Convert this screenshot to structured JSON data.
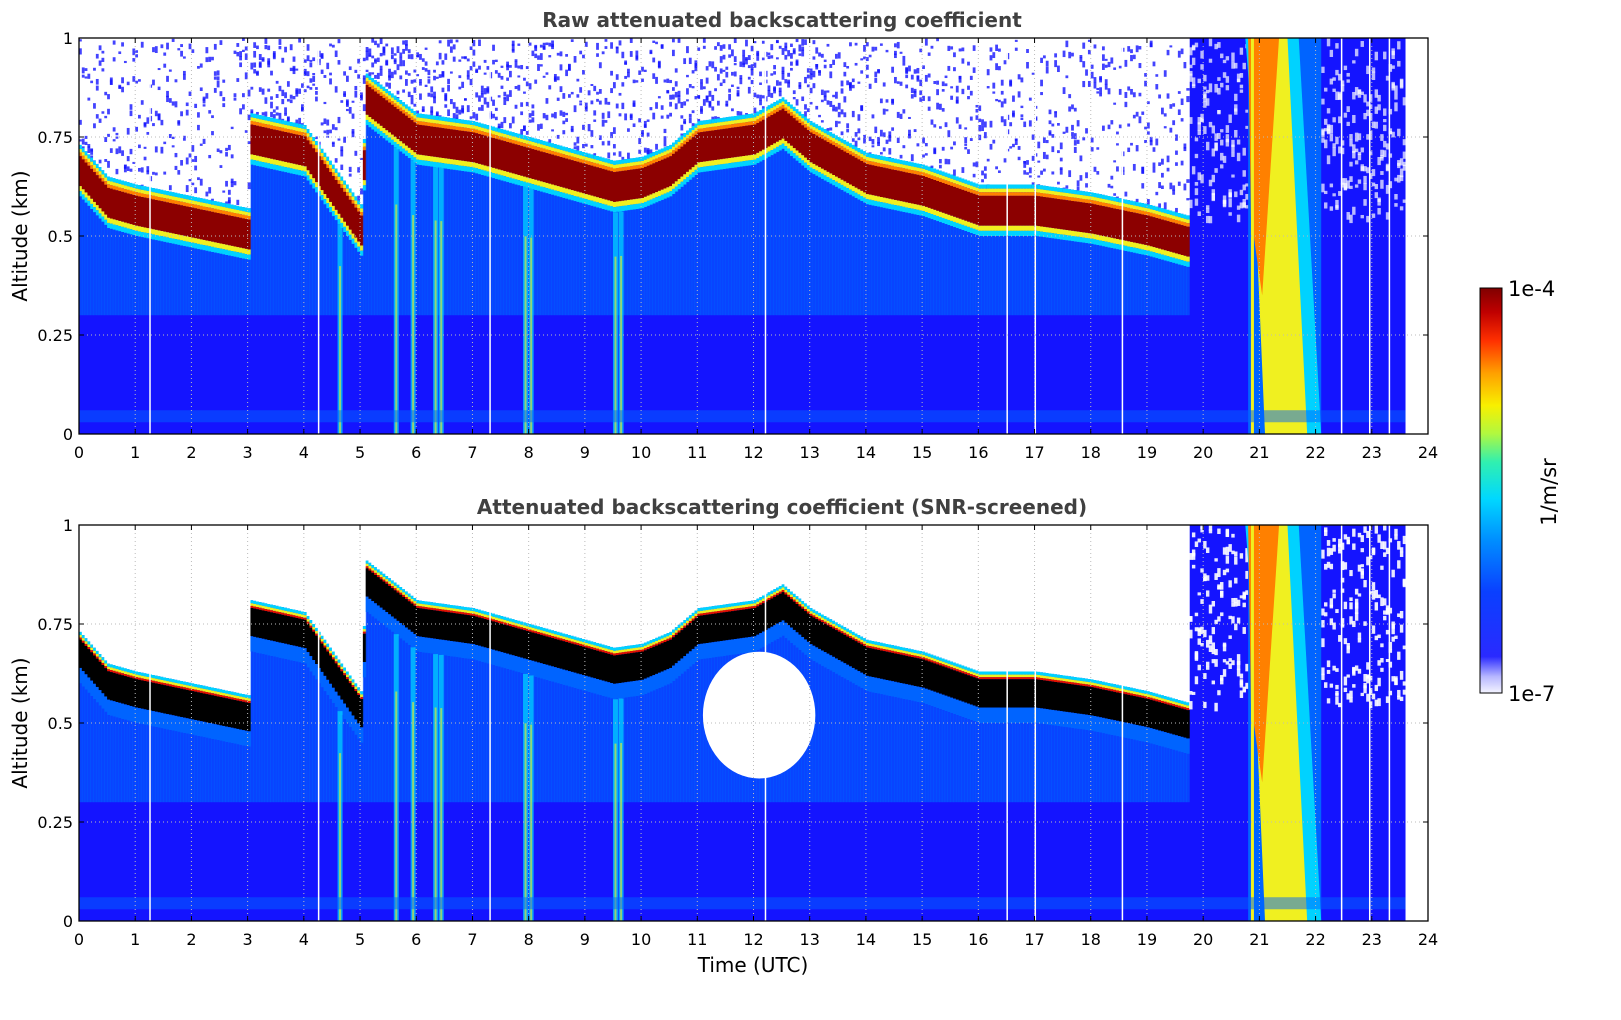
{
  "colors": {
    "deep_blue": "#1414ff",
    "mid_blue": "#0064ff",
    "cyan": "#00d2ff",
    "aqua": "#20f0c8",
    "yellow": "#f0f020",
    "orange": "#ff8000",
    "red": "#e01000",
    "dark_red": "#8c0000",
    "saturated_black": "#000000",
    "title_gray": "#404040"
  },
  "chart_data": [
    {
      "type": "heatmap",
      "title": "Raw attenuated backscattering coefficient",
      "xlabel": "",
      "ylabel": "Altitude (km)",
      "xlim": [
        0,
        24
      ],
      "ylim": [
        0,
        1
      ],
      "x_ticks": [
        "0",
        "1",
        "2",
        "3",
        "4",
        "5",
        "6",
        "7",
        "8",
        "9",
        "10",
        "11",
        "12",
        "13",
        "14",
        "15",
        "16",
        "17",
        "18",
        "19",
        "20",
        "21",
        "22",
        "23",
        "24"
      ],
      "y_ticks": [
        "0",
        "0.25",
        "0.5",
        "0.75",
        "1"
      ],
      "grid": true,
      "cloud_base_km": {
        "time_utc": [
          0,
          0.5,
          1,
          2,
          3,
          3.05,
          4,
          5,
          5.1,
          6,
          7,
          8,
          9,
          9.5,
          10,
          10.5,
          11,
          12,
          12.5,
          13,
          14,
          15,
          16,
          17,
          18,
          19,
          19.75
        ],
        "altitude_km": [
          0.6,
          0.52,
          0.5,
          0.47,
          0.44,
          0.68,
          0.65,
          0.45,
          0.78,
          0.68,
          0.66,
          0.62,
          0.58,
          0.56,
          0.57,
          0.6,
          0.66,
          0.68,
          0.72,
          0.66,
          0.58,
          0.55,
          0.5,
          0.5,
          0.48,
          0.45,
          0.42
        ]
      },
      "rain_band_time_utc": [
        20.8,
        22.1
      ],
      "data_end_time_utc": 23.6
    },
    {
      "type": "heatmap",
      "title": "Attenuated backscattering coefficient (SNR-screened)",
      "xlabel": "Time (UTC)",
      "ylabel": "Altitude (km)",
      "xlim": [
        0,
        24
      ],
      "ylim": [
        0,
        1
      ],
      "x_ticks": [
        "0",
        "1",
        "2",
        "3",
        "4",
        "5",
        "6",
        "7",
        "8",
        "9",
        "10",
        "11",
        "12",
        "13",
        "14",
        "15",
        "16",
        "17",
        "18",
        "19",
        "20",
        "21",
        "22",
        "23",
        "24"
      ],
      "y_ticks": [
        "0",
        "0.25",
        "0.5",
        "0.75",
        "1"
      ],
      "grid": true
    }
  ],
  "colorbar": {
    "label": "1/m/sr",
    "max_label": "1e-4",
    "min_label": "1e-7",
    "scale": "log",
    "colormap": "jet"
  }
}
